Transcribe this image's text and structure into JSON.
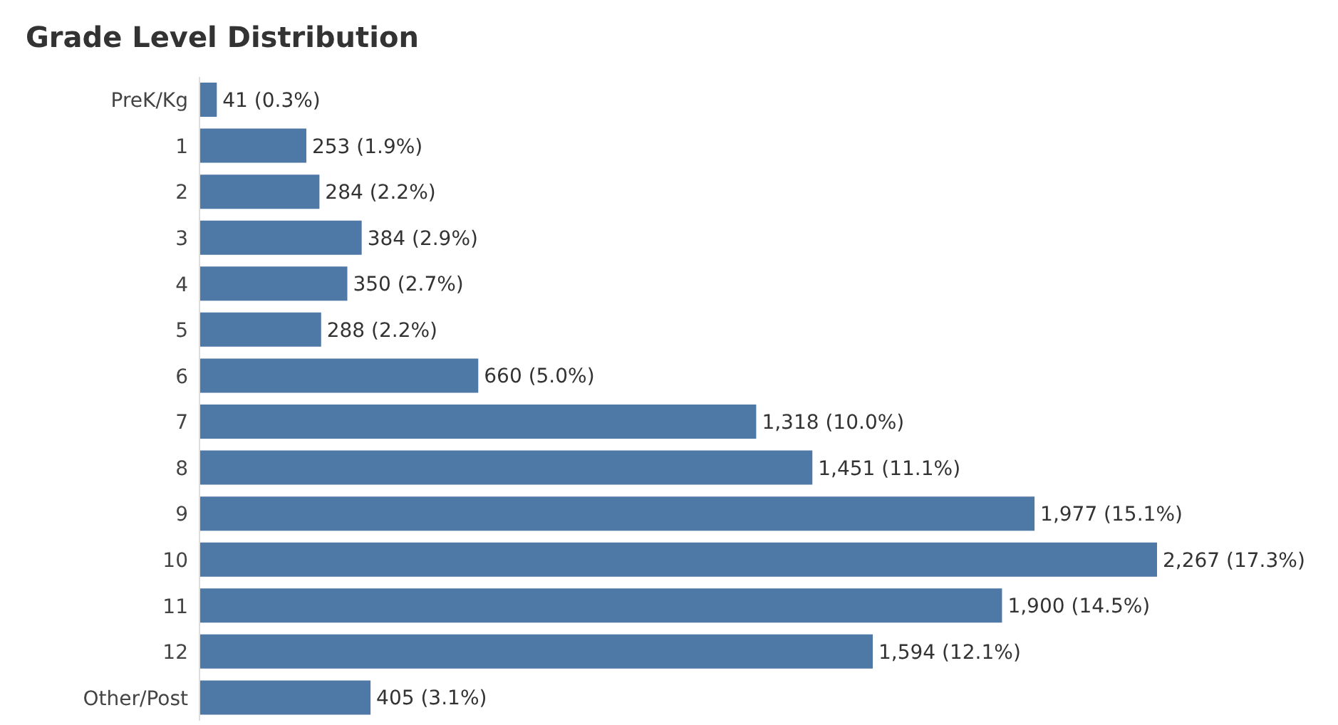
{
  "chart_data": {
    "type": "bar",
    "orientation": "horizontal",
    "title": "Grade Level Distribution",
    "categories": [
      "PreK/Kg",
      "1",
      "2",
      "3",
      "4",
      "5",
      "6",
      "7",
      "8",
      "9",
      "10",
      "11",
      "12",
      "Other/Post"
    ],
    "values": [
      41,
      253,
      284,
      384,
      350,
      288,
      660,
      1318,
      1451,
      1977,
      2267,
      1900,
      1594,
      405
    ],
    "value_labels": [
      "41 (0.3%)",
      "253 (1.9%)",
      "284 (2.2%)",
      "384 (2.9%)",
      "350 (2.7%)",
      "288 (2.2%)",
      "660 (5.0%)",
      "1,318 (10.0%)",
      "1,451 (11.1%)",
      "1,977 (15.1%)",
      "2,267 (17.3%)",
      "1,900 (14.5%)",
      "1,594 (12.1%)",
      "405 (3.1%)"
    ],
    "color": "#4e79a7",
    "grid": false,
    "legend": false
  }
}
